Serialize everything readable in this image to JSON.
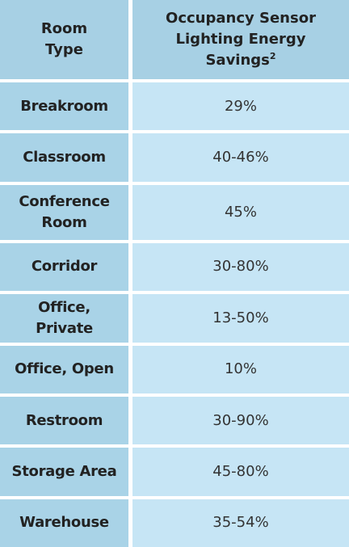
{
  "table": {
    "header": [
      "Room Type",
      "Occupancy Sensor Lighting Energy Savings"
    ],
    "header_footnote": "2",
    "rows": [
      [
        "Breakroom",
        "29%"
      ],
      [
        "Classroom",
        "40-46%"
      ],
      [
        "Conference Room",
        "45%"
      ],
      [
        "Corridor",
        "30-80%"
      ],
      [
        "Office, Private",
        "13-50%"
      ],
      [
        "Office, Open",
        "10%"
      ],
      [
        "Restroom",
        "30-90%"
      ],
      [
        "Storage Area",
        "45-80%"
      ],
      [
        "Warehouse",
        "35-54%"
      ]
    ]
  }
}
